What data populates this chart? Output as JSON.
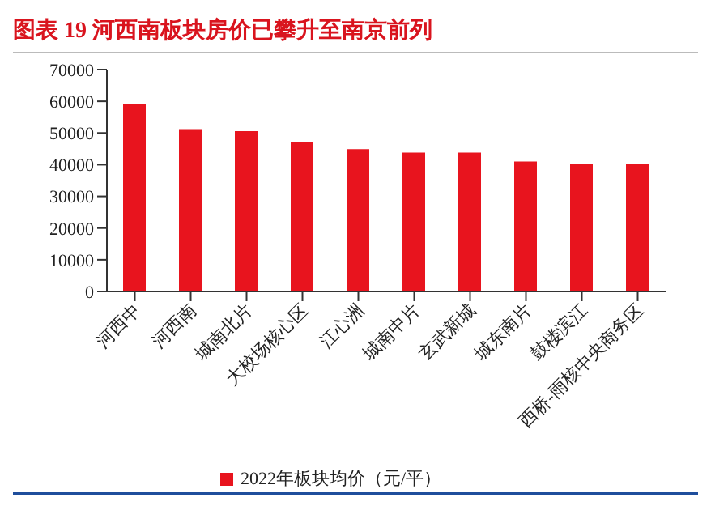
{
  "chart_data": {
    "type": "bar",
    "title": "图表 19  河西南板块房价已攀升至南京前列",
    "categories": [
      "河西中",
      "河西南",
      "城南北片",
      "大校场核心区",
      "江心洲",
      "城南中片",
      "玄武新城",
      "城东南片",
      "鼓楼滨江",
      "西桥-雨核中央商务区"
    ],
    "series": [
      {
        "name": "2022年板块均价（元/平）",
        "color": "#e8141e",
        "values": [
          59300,
          51200,
          50600,
          47100,
          44900,
          43800,
          43800,
          41000,
          40100,
          40100
        ]
      }
    ],
    "ylim": [
      0,
      70000
    ],
    "yticks": [
      0,
      10000,
      20000,
      30000,
      40000,
      50000,
      60000,
      70000
    ],
    "grid": false,
    "legend": "bottom"
  }
}
